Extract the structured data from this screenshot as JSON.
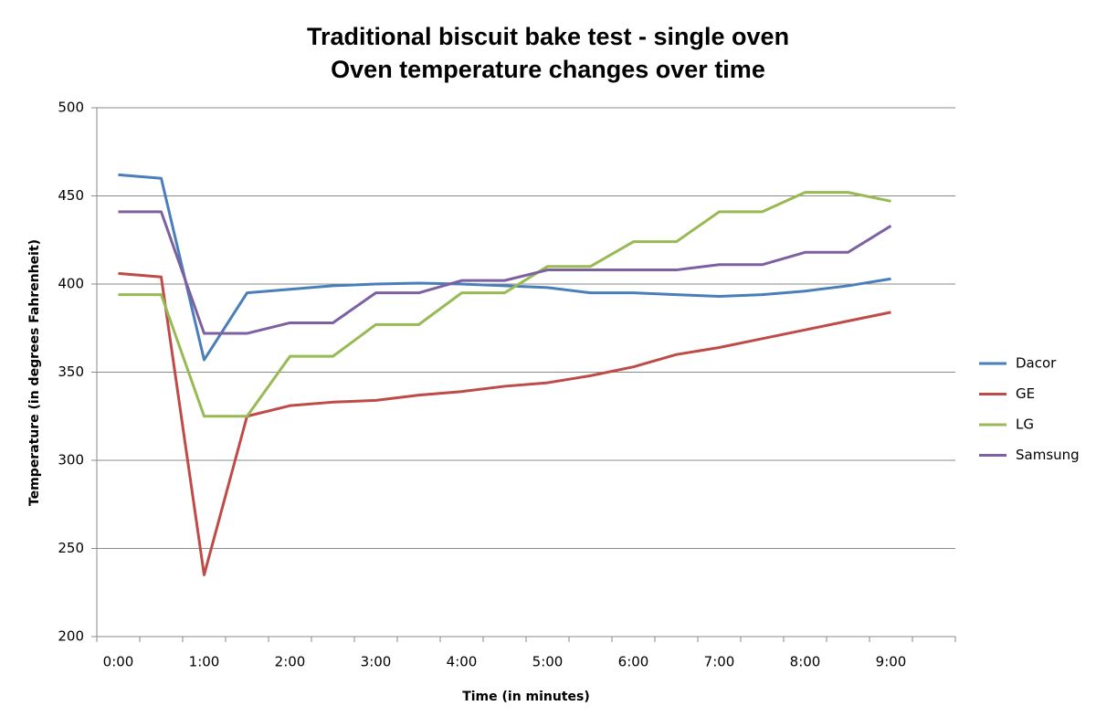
{
  "chart_data": {
    "type": "line",
    "title": "Traditional biscuit bake test - single oven",
    "subtitle": "Oven temperature changes over time",
    "x_label": "Time (in minutes)",
    "y_label": "Temperature (in degrees Fahrenheit)",
    "categories": [
      "0:00",
      null,
      "1:00",
      null,
      "2:00",
      null,
      "3:00",
      null,
      "4:00",
      null,
      "5:00",
      null,
      "6:00",
      null,
      "7:00",
      null,
      "8:00",
      null,
      "9:00",
      null
    ],
    "series": [
      {
        "name": "Dacor",
        "color": "#4a7ebb",
        "values": [
          462,
          460,
          357,
          395,
          397,
          399,
          400,
          400.5,
          400,
          399,
          398,
          395,
          395,
          394,
          393,
          394,
          396,
          399,
          403,
          null
        ]
      },
      {
        "name": "GE",
        "color": "#be4b48",
        "values": [
          406,
          404,
          235,
          325,
          331,
          333,
          334,
          337,
          339,
          342,
          344,
          348,
          353,
          360,
          364,
          369,
          374,
          379,
          384,
          null
        ]
      },
      {
        "name": "LG",
        "color": "#98b954",
        "values": [
          394,
          394,
          325,
          325,
          359,
          359,
          377,
          377,
          395,
          395,
          410,
          410,
          424,
          424,
          441,
          441,
          452,
          452,
          447,
          null
        ]
      },
      {
        "name": "Samsung",
        "color": "#7d60a0",
        "values": [
          441,
          441,
          372,
          372,
          378,
          378,
          395,
          395,
          402,
          402,
          408,
          408,
          408,
          408,
          411,
          411,
          418,
          418,
          433,
          null
        ]
      }
    ],
    "ylim": [
      200,
      500
    ],
    "yticks": [
      200,
      250,
      300,
      350,
      400,
      450,
      500
    ],
    "grid": true,
    "legend": "right"
  }
}
